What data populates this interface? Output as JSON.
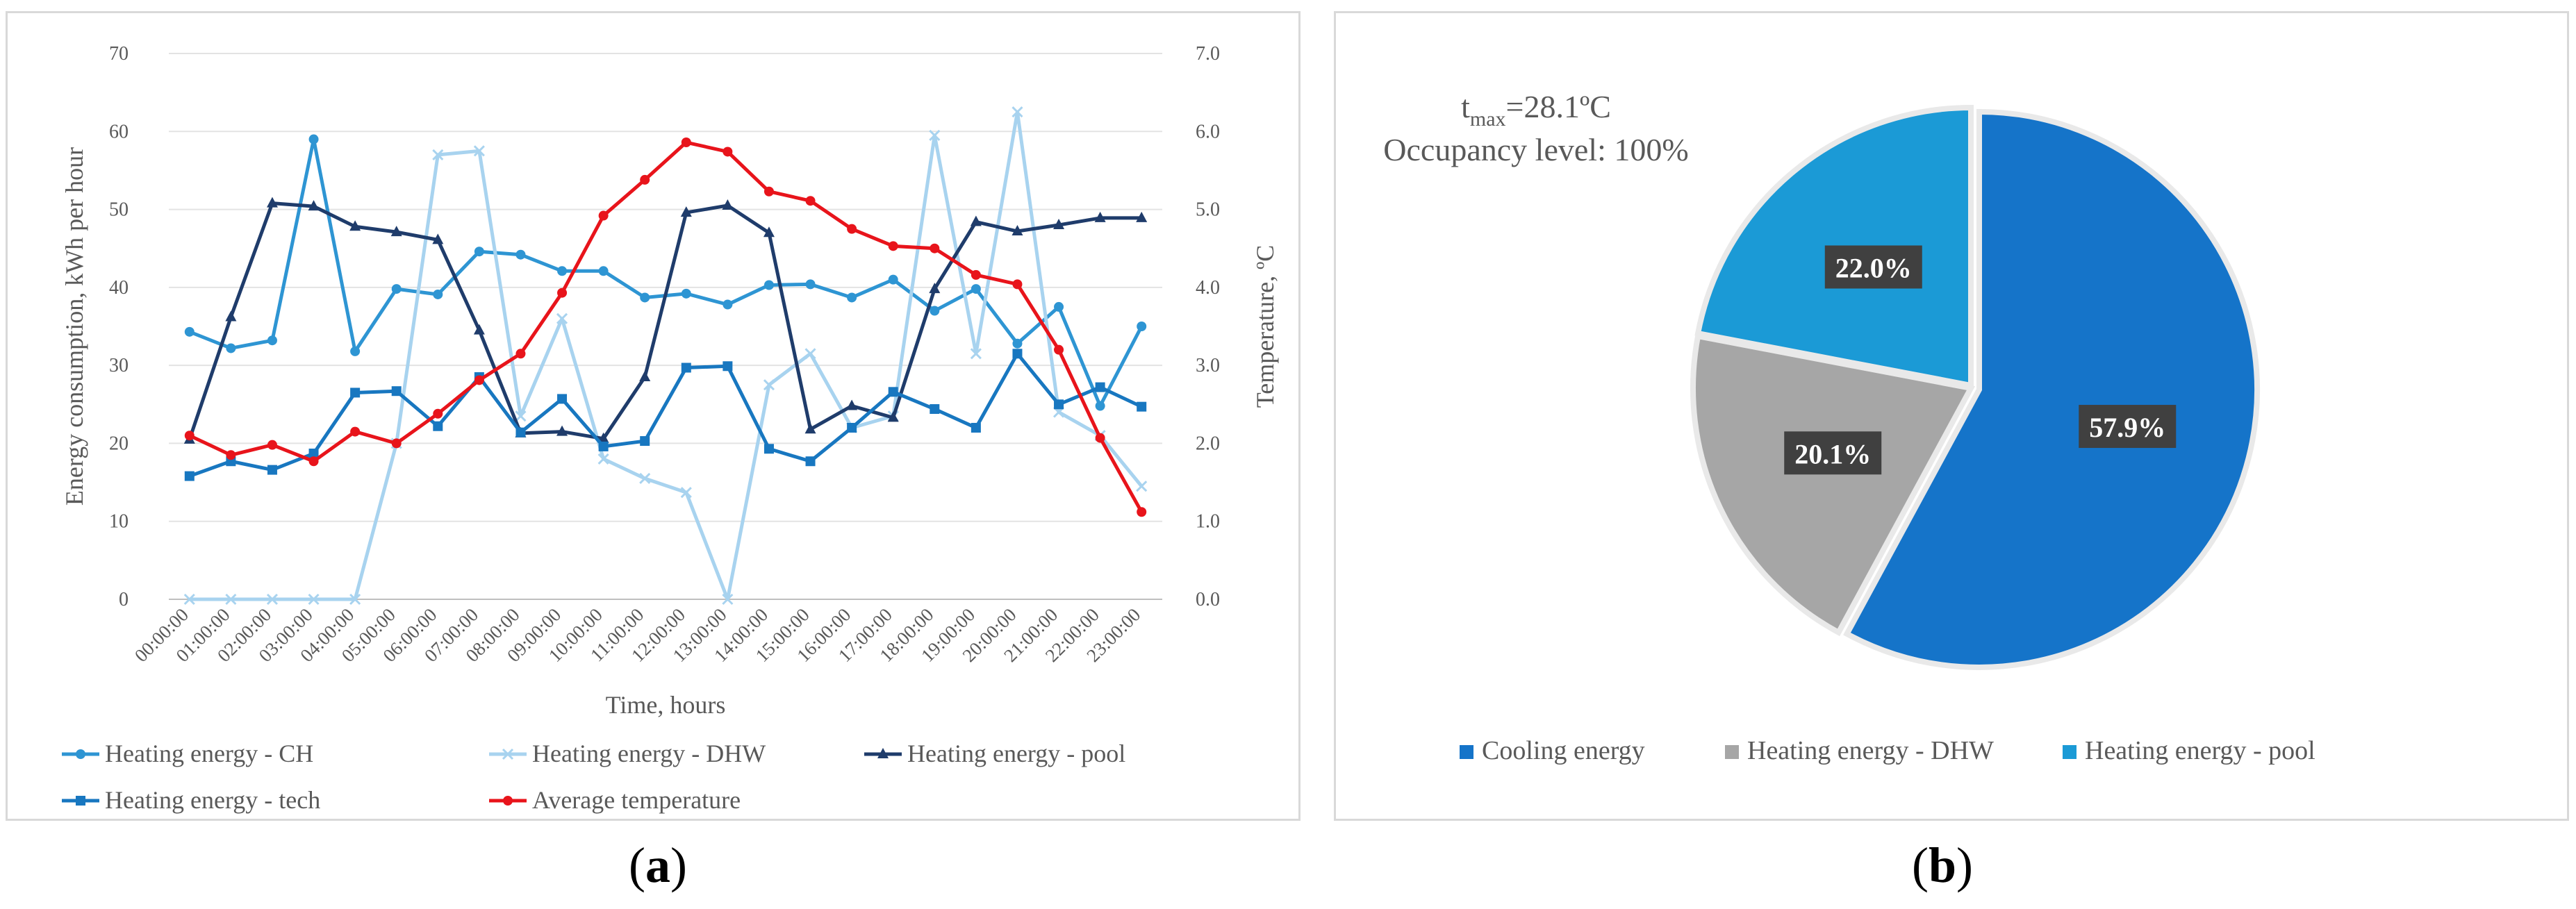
{
  "chart_data": [
    {
      "type": "line",
      "panel_label": "a",
      "title": "",
      "xlabel": "Time, hours",
      "ylabel": "Energy consumption, kWh per hour",
      "ylabel_right": "Temperature, ºC",
      "ylim": [
        0,
        70
      ],
      "ylim_right": [
        0,
        7
      ],
      "yticks": [
        "0",
        "10",
        "20",
        "30",
        "40",
        "50",
        "60",
        "70"
      ],
      "yticks_right": [
        "0.0",
        "1.0",
        "2.0",
        "3.0",
        "4.0",
        "5.0",
        "6.0",
        "7.0"
      ],
      "grid": true,
      "categories": [
        "00:00:00",
        "01:00:00",
        "02:00:00",
        "03:00:00",
        "04:00:00",
        "05:00:00",
        "06:00:00",
        "07:00:00",
        "08:00:00",
        "09:00:00",
        "10:00:00",
        "11:00:00",
        "12:00:00",
        "13:00:00",
        "14:00:00",
        "15:00:00",
        "16:00:00",
        "17:00:00",
        "18:00:00",
        "19:00:00",
        "20:00:00",
        "21:00:00",
        "22:00:00",
        "23:00:00"
      ],
      "series": [
        {
          "name": "Heating energy - CH",
          "axis": "left",
          "color": "#2e95d3",
          "marker": "circle",
          "values": [
            34.3,
            32.2,
            33.2,
            59.0,
            31.8,
            39.8,
            39.1,
            44.6,
            44.2,
            42.1,
            42.1,
            38.7,
            39.2,
            37.8,
            40.3,
            40.4,
            38.7,
            41.0,
            37.0,
            39.8,
            32.8,
            37.5,
            24.8,
            35.0
          ]
        },
        {
          "name": "Heating energy - DHW",
          "axis": "left",
          "color": "#a8d3ef",
          "marker": "x",
          "values": [
            0,
            0,
            0,
            0,
            0,
            20.0,
            57.0,
            57.5,
            23.5,
            36.0,
            18.0,
            15.5,
            13.7,
            0,
            27.5,
            31.5,
            22.0,
            23.5,
            59.5,
            31.5,
            62.5,
            24.0,
            21.0,
            14.5
          ]
        },
        {
          "name": "Heating energy - pool",
          "axis": "left",
          "color": "#1f3c6b",
          "marker": "triangle",
          "values": [
            20.5,
            36.2,
            50.8,
            50.4,
            47.8,
            47.1,
            46.1,
            34.5,
            21.3,
            21.5,
            20.6,
            28.5,
            49.6,
            50.5,
            47.0,
            21.8,
            24.8,
            23.3,
            39.8,
            48.4,
            47.2,
            48.0,
            48.9,
            48.9
          ]
        },
        {
          "name": "Heating energy - tech",
          "axis": "left",
          "color": "#1877c0",
          "marker": "square",
          "values": [
            15.8,
            17.7,
            16.6,
            18.7,
            26.5,
            26.7,
            22.2,
            28.5,
            21.4,
            25.7,
            19.6,
            20.3,
            29.7,
            29.9,
            19.3,
            17.7,
            22.0,
            26.6,
            24.4,
            22.0,
            31.5,
            25.0,
            27.2,
            24.7
          ]
        },
        {
          "name": "Average temperature",
          "axis": "right",
          "color": "#e8141b",
          "marker": "circle",
          "values": [
            2.1,
            1.85,
            1.98,
            1.77,
            2.15,
            2.0,
            2.38,
            2.81,
            3.15,
            3.93,
            4.92,
            5.38,
            5.86,
            5.74,
            5.23,
            5.11,
            4.75,
            4.53,
            4.5,
            4.16,
            4.04,
            3.2,
            2.07,
            1.12
          ]
        }
      ]
    },
    {
      "type": "pie",
      "panel_label": "b",
      "annotation_base": "t",
      "annotation_sub": "max",
      "annotation_value": "=28.1ºC",
      "annotation_line2": "Occupancy level: 100%",
      "slices": [
        {
          "name": "Cooling energy",
          "value": 57.9,
          "label": "57.9%",
          "color": "#1574c9"
        },
        {
          "name": "Heating energy - DHW",
          "value": 20.1,
          "label": "20.1%",
          "color": "#a6a6a6"
        },
        {
          "name": "Heating energy - pool",
          "value": 22.0,
          "label": "22.0%",
          "color": "#1b9ad6"
        }
      ]
    }
  ]
}
